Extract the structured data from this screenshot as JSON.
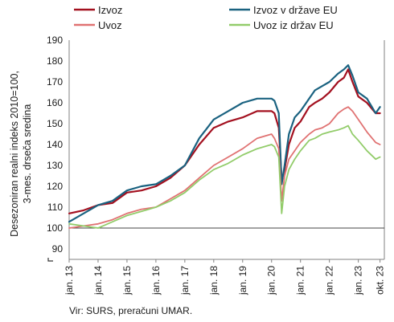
{
  "chart_data": {
    "type": "line",
    "ylabel_lines": [
      "Desezoniran realni indeks 2010=100,",
      "3-mes. drseča sredina"
    ],
    "ylim": [
      85,
      190
    ],
    "yticks": [
      90,
      100,
      110,
      120,
      130,
      140,
      150,
      160,
      170,
      180,
      190
    ],
    "xlim": [
      2013.0,
      2023.9
    ],
    "x_ticks": [
      {
        "x": 2013.0,
        "label": "jan. 13"
      },
      {
        "x": 2014.0,
        "label": "jan. 14"
      },
      {
        "x": 2015.0,
        "label": "jan. 15"
      },
      {
        "x": 2016.0,
        "label": "jan. 16"
      },
      {
        "x": 2017.0,
        "label": "jan. 17"
      },
      {
        "x": 2018.0,
        "label": "jan. 18"
      },
      {
        "x": 2019.0,
        "label": "jan. 19"
      },
      {
        "x": 2020.0,
        "label": "jan. 20"
      },
      {
        "x": 2021.0,
        "label": "jan. 21"
      },
      {
        "x": 2022.0,
        "label": "jan. 22"
      },
      {
        "x": 2023.0,
        "label": "jan. 23"
      },
      {
        "x": 2023.75,
        "label": "okt. 23"
      }
    ],
    "reference_line": 100,
    "legend_position": "top",
    "series": [
      {
        "name": "Izvoz",
        "color": "#a3101f",
        "width": 2.2,
        "x": [
          2013.0,
          2013.5,
          2014.0,
          2014.5,
          2015.0,
          2015.5,
          2016.0,
          2016.5,
          2017.0,
          2017.5,
          2018.0,
          2018.5,
          2019.0,
          2019.5,
          2020.0,
          2020.1,
          2020.25,
          2020.35,
          2020.45,
          2020.6,
          2020.8,
          2021.0,
          2021.3,
          2021.5,
          2021.75,
          2022.0,
          2022.3,
          2022.5,
          2022.65,
          2022.8,
          2023.0,
          2023.3,
          2023.6,
          2023.75
        ],
        "values": [
          107,
          108.5,
          111,
          112,
          117,
          118,
          120,
          124,
          130,
          140,
          148,
          151,
          153,
          156,
          156,
          155,
          148,
          123,
          128,
          140,
          148,
          151,
          158,
          160,
          162,
          165,
          170,
          172,
          176,
          170,
          163,
          160,
          155,
          155
        ]
      },
      {
        "name": "Izvoz v države EU",
        "color": "#1a6280",
        "width": 2.2,
        "x": [
          2013.0,
          2013.5,
          2014.0,
          2014.5,
          2015.0,
          2015.5,
          2016.0,
          2016.5,
          2017.0,
          2017.5,
          2018.0,
          2018.5,
          2019.0,
          2019.5,
          2020.0,
          2020.1,
          2020.25,
          2020.35,
          2020.45,
          2020.6,
          2020.8,
          2021.0,
          2021.3,
          2021.5,
          2021.75,
          2022.0,
          2022.3,
          2022.5,
          2022.65,
          2022.8,
          2023.0,
          2023.3,
          2023.6,
          2023.75
        ],
        "values": [
          103,
          107,
          111,
          113,
          118,
          120,
          121,
          125,
          130,
          143,
          152,
          156,
          160,
          162,
          162,
          161,
          155,
          121,
          130,
          145,
          153,
          156,
          162,
          166,
          168,
          170,
          174,
          176,
          178,
          173,
          165,
          162,
          155,
          158
        ]
      },
      {
        "name": "Uvoz",
        "color": "#e07272",
        "width": 1.8,
        "x": [
          2013.0,
          2013.5,
          2014.0,
          2014.5,
          2015.0,
          2015.5,
          2016.0,
          2016.5,
          2017.0,
          2017.5,
          2018.0,
          2018.5,
          2019.0,
          2019.5,
          2020.0,
          2020.1,
          2020.25,
          2020.35,
          2020.45,
          2020.6,
          2020.8,
          2021.0,
          2021.3,
          2021.5,
          2021.75,
          2022.0,
          2022.3,
          2022.5,
          2022.65,
          2022.8,
          2023.0,
          2023.3,
          2023.6,
          2023.75
        ],
        "values": [
          100,
          101,
          102,
          104,
          107,
          109,
          110,
          114,
          118,
          124,
          130,
          134,
          138,
          143,
          145,
          143,
          138,
          113,
          125,
          133,
          137,
          141,
          145,
          147,
          148,
          150,
          155,
          157,
          158,
          156,
          152,
          146,
          141,
          140
        ]
      },
      {
        "name": "Uvoz iz držav EU",
        "color": "#92cc6a",
        "width": 1.8,
        "x": [
          2013.0,
          2013.5,
          2014.0,
          2014.5,
          2015.0,
          2015.5,
          2016.0,
          2016.5,
          2017.0,
          2017.5,
          2018.0,
          2018.5,
          2019.0,
          2019.5,
          2020.0,
          2020.1,
          2020.25,
          2020.35,
          2020.45,
          2020.6,
          2020.8,
          2021.0,
          2021.3,
          2021.5,
          2021.75,
          2022.0,
          2022.3,
          2022.5,
          2022.65,
          2022.8,
          2023.0,
          2023.3,
          2023.6,
          2023.75
        ],
        "values": [
          102,
          101,
          100,
          103,
          106,
          108,
          110,
          113,
          117,
          123,
          128,
          131,
          135,
          138,
          140,
          139,
          134,
          107,
          120,
          128,
          133,
          137,
          142,
          143,
          145,
          146,
          147,
          148,
          149,
          145,
          142,
          137,
          133,
          134
        ]
      }
    ]
  },
  "source": "Vir: SURS, preračuni UMAR."
}
